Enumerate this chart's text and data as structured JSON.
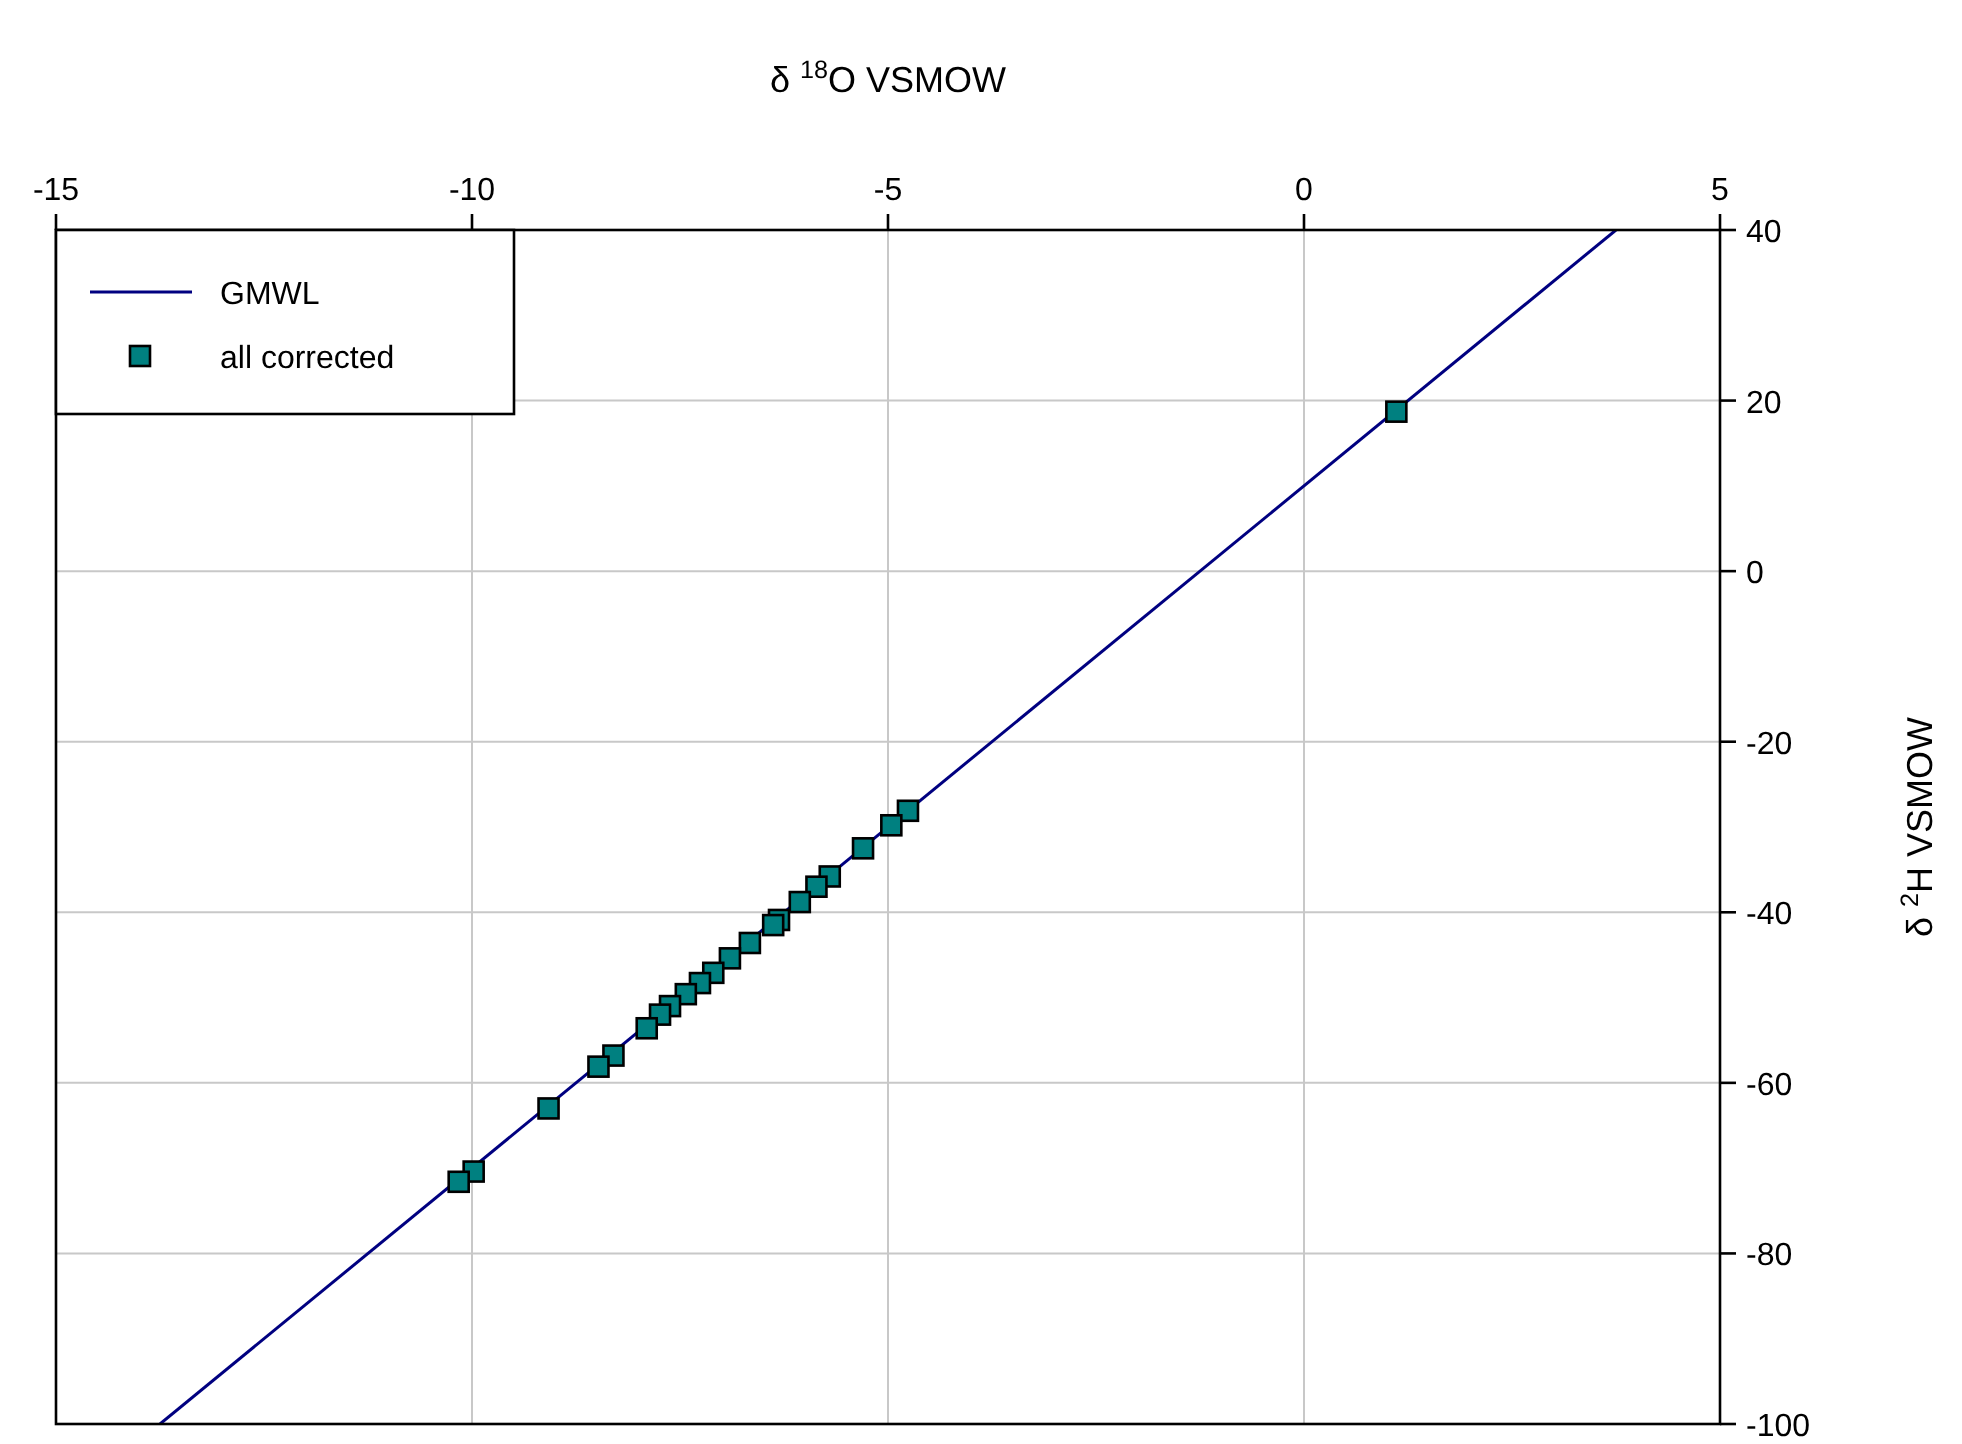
{
  "chart_data": {
    "type": "scatter",
    "xlabel": "δ $^{18}$O VSMOW",
    "ylabel": "δ $^{2}$H VSMOW",
    "xlim": [
      -15,
      5
    ],
    "xticks": [
      -15,
      -10,
      -5,
      0,
      5
    ],
    "ylim": [
      -100,
      40
    ],
    "yticks": [
      -100,
      -80,
      -60,
      -40,
      -20,
      0,
      20,
      40
    ],
    "grid": true,
    "legend": "top left",
    "series": [
      {
        "name": "GMWL",
        "type": "line",
        "color": "#000080",
        "line_style": "solid",
        "marker": "none",
        "x": [
          -13.75,
          3.75
        ],
        "values": [
          -100,
          40
        ]
      },
      {
        "name": "all corrected",
        "color": "#008080",
        "marker": "square",
        "x": [
          1.11,
          -4.76,
          -4.96,
          -5.3,
          -5.7,
          -5.86,
          -6.06,
          -6.31,
          -6.38,
          -6.66,
          -6.9,
          -7.1,
          -7.26,
          -7.43,
          -7.62,
          -7.74,
          -7.9,
          -8.3,
          -8.48,
          -9.08,
          -9.98,
          -10.16
        ],
        "values": [
          18.7,
          -28.1,
          -29.8,
          -32.5,
          -35.8,
          -37.0,
          -38.8,
          -40.9,
          -41.5,
          -43.6,
          -45.4,
          -47.1,
          -48.3,
          -49.6,
          -51.0,
          -52.0,
          -53.6,
          -56.8,
          -58.1,
          -63.0,
          -70.4,
          -71.6
        ]
      }
    ]
  }
}
